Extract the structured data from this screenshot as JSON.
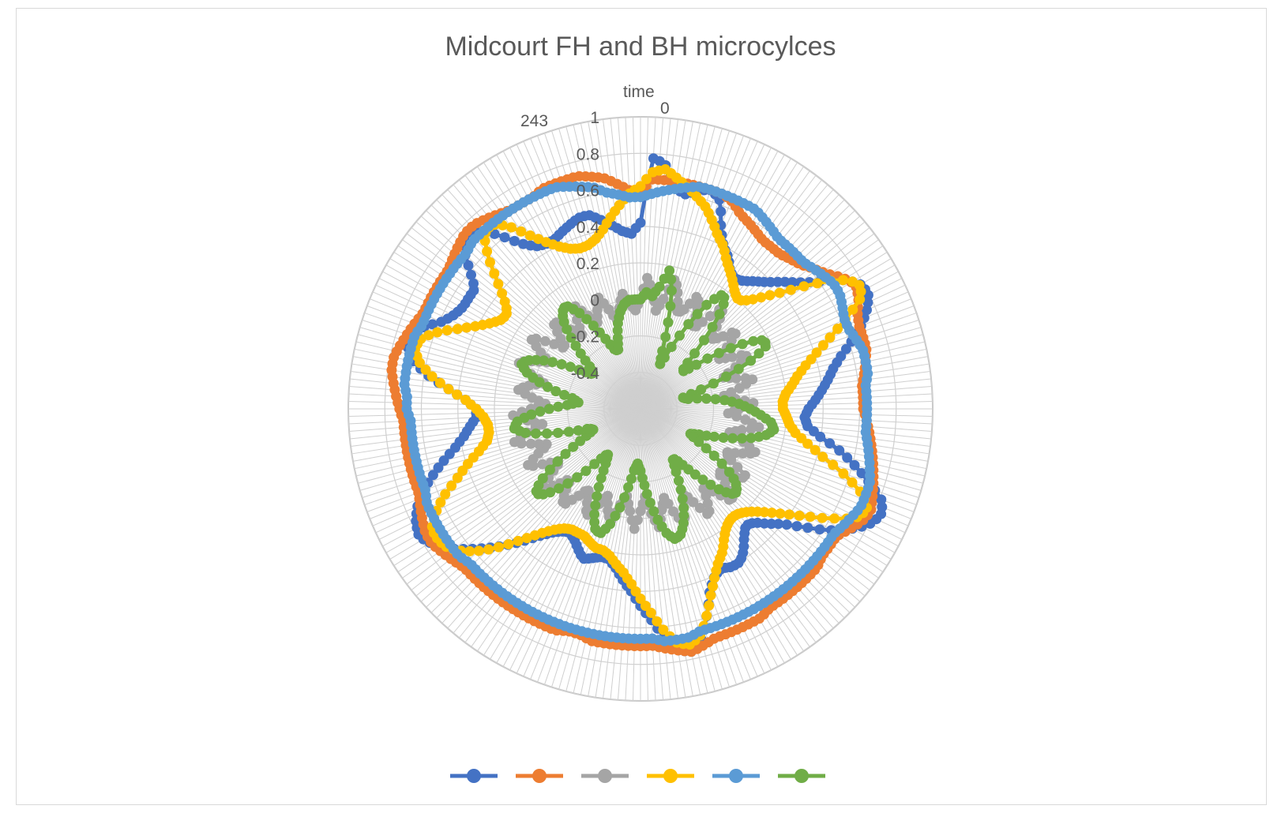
{
  "chart_data": {
    "type": "radar",
    "title": "Midcourt FH and BH microcylces",
    "category_axis_label": "time",
    "category_labels": [
      {
        "value": "0"
      },
      {
        "value": "243"
      }
    ],
    "n_categories": 244,
    "radial_range": [
      -0.6,
      1
    ],
    "radial_ticks": [
      "1",
      "0.8",
      "0.6",
      "0.4",
      "0.2",
      "0",
      "-0.2",
      "-0.4"
    ],
    "legend_position": "bottom",
    "series": [
      {
        "color": "#4472C4",
        "profile": [
          0.42,
          0.78,
          0.74,
          0.62,
          0.6,
          0.64,
          0.66,
          0.62,
          0.48,
          0.4,
          0.36,
          0.3,
          0.28,
          0.3,
          0.34,
          0.38,
          0.44,
          0.5,
          0.58,
          0.7,
          0.78,
          0.8,
          0.76,
          0.7,
          0.62,
          0.54,
          0.48,
          0.44,
          0.4,
          0.36,
          0.32,
          0.3,
          0.32,
          0.4,
          0.52,
          0.62,
          0.72,
          0.82,
          0.84,
          0.8,
          0.72,
          0.62,
          0.5,
          0.4,
          0.34,
          0.28,
          0.26,
          0.3,
          0.36,
          0.4,
          0.4,
          0.38,
          0.4,
          0.46,
          0.58,
          0.7,
          0.76,
          0.74,
          0.66,
          0.56,
          0.48,
          0.4,
          0.34,
          0.28,
          0.24,
          0.24,
          0.26,
          0.28,
          0.24,
          0.2,
          0.18,
          0.2,
          0.24,
          0.3,
          0.38,
          0.46,
          0.54,
          0.62,
          0.7,
          0.76,
          0.8,
          0.78,
          0.74,
          0.68,
          0.6,
          0.52,
          0.44,
          0.38,
          0.34,
          0.3,
          0.3,
          0.36,
          0.46,
          0.58,
          0.68,
          0.72,
          0.72,
          0.66,
          0.58,
          0.54,
          0.52,
          0.52,
          0.52,
          0.6,
          0.7,
          0.76,
          0.72,
          0.62,
          0.52,
          0.46,
          0.44,
          0.44,
          0.46,
          0.48,
          0.5,
          0.5,
          0.46,
          0.42,
          0.38,
          0.36
        ]
      },
      {
        "color": "#ED7D31",
        "profile": [
          0.58,
          0.66,
          0.66,
          0.66,
          0.66,
          0.66,
          0.66,
          0.66,
          0.64,
          0.6,
          0.58,
          0.56,
          0.54,
          0.54,
          0.54,
          0.56,
          0.58,
          0.62,
          0.66,
          0.72,
          0.76,
          0.74,
          0.7,
          0.68,
          0.68,
          0.68,
          0.66,
          0.64,
          0.62,
          0.62,
          0.62,
          0.64,
          0.66,
          0.68,
          0.7,
          0.72,
          0.74,
          0.76,
          0.78,
          0.76,
          0.72,
          0.68,
          0.68,
          0.68,
          0.7,
          0.7,
          0.7,
          0.7,
          0.7,
          0.7,
          0.72,
          0.72,
          0.72,
          0.72,
          0.72,
          0.74,
          0.76,
          0.74,
          0.72,
          0.7,
          0.7,
          0.7,
          0.7,
          0.7,
          0.7,
          0.68,
          0.68,
          0.7,
          0.7,
          0.7,
          0.7,
          0.7,
          0.7,
          0.7,
          0.7,
          0.7,
          0.7,
          0.72,
          0.74,
          0.76,
          0.76,
          0.74,
          0.72,
          0.7,
          0.7,
          0.7,
          0.7,
          0.7,
          0.7,
          0.7,
          0.72,
          0.74,
          0.76,
          0.78,
          0.78,
          0.76,
          0.74,
          0.72,
          0.7,
          0.7,
          0.7,
          0.7,
          0.7,
          0.72,
          0.74,
          0.76,
          0.76,
          0.74,
          0.72,
          0.7,
          0.7,
          0.7,
          0.72,
          0.72,
          0.72,
          0.72,
          0.7,
          0.68,
          0.64,
          0.6
        ]
      },
      {
        "color": "#A5A5A5",
        "profile": [
          0.0,
          0.12,
          0.04,
          -0.06,
          0.02,
          0.14,
          0.06,
          -0.04,
          0.0,
          0.1,
          0.02,
          -0.08,
          0.0,
          0.12,
          0.04,
          -0.06,
          -0.02,
          0.08,
          0.0,
          -0.1,
          -0.04,
          0.06,
          -0.02,
          -0.12,
          -0.06,
          0.04,
          -0.04,
          -0.14,
          -0.08,
          0.02,
          -0.06,
          -0.12,
          -0.02,
          0.06,
          -0.04,
          -0.1,
          0.0,
          0.08,
          0.0,
          -0.08,
          -0.02,
          0.1,
          0.02,
          -0.06,
          0.04,
          0.12,
          0.02,
          -0.06,
          0.02,
          0.1,
          0.0,
          -0.08,
          -0.02,
          0.08,
          0.0,
          -0.1,
          -0.04,
          0.06,
          -0.02,
          -0.12,
          -0.04,
          0.06,
          -0.04,
          -0.12,
          -0.06,
          0.04,
          -0.02,
          -0.1,
          -0.02,
          0.06,
          -0.02,
          -0.08,
          0.0,
          0.08,
          0.02,
          -0.06,
          0.02,
          0.1,
          0.0,
          -0.08,
          0.0,
          0.1,
          0.02,
          -0.06,
          0.02,
          0.12,
          0.04,
          -0.06,
          0.02,
          0.1,
          0.0,
          -0.08,
          0.0,
          0.08,
          0.02,
          -0.06,
          0.04,
          0.12,
          0.04,
          -0.04,
          0.04,
          0.12,
          0.02,
          -0.08,
          0.0,
          0.08,
          0.0,
          -0.1,
          -0.02,
          0.08,
          0.0,
          -0.08,
          -0.02,
          0.06,
          -0.02,
          -0.1,
          -0.04,
          0.04,
          -0.02,
          -0.06
        ]
      },
      {
        "color": "#FFC000",
        "profile": [
          0.62,
          0.7,
          0.72,
          0.68,
          0.64,
          0.6,
          0.56,
          0.5,
          0.44,
          0.4,
          0.34,
          0.3,
          0.26,
          0.22,
          0.2,
          0.24,
          0.32,
          0.42,
          0.56,
          0.7,
          0.78,
          0.76,
          0.64,
          0.52,
          0.42,
          0.34,
          0.28,
          0.24,
          0.2,
          0.18,
          0.18,
          0.2,
          0.22,
          0.26,
          0.34,
          0.44,
          0.58,
          0.7,
          0.76,
          0.72,
          0.6,
          0.48,
          0.38,
          0.3,
          0.24,
          0.2,
          0.18,
          0.18,
          0.2,
          0.24,
          0.3,
          0.34,
          0.4,
          0.48,
          0.58,
          0.68,
          0.72,
          0.7,
          0.62,
          0.52,
          0.44,
          0.36,
          0.3,
          0.26,
          0.22,
          0.2,
          0.2,
          0.18,
          0.16,
          0.16,
          0.16,
          0.18,
          0.22,
          0.28,
          0.36,
          0.46,
          0.56,
          0.64,
          0.7,
          0.72,
          0.72,
          0.66,
          0.58,
          0.48,
          0.4,
          0.32,
          0.26,
          0.24,
          0.24,
          0.26,
          0.3,
          0.36,
          0.46,
          0.56,
          0.64,
          0.68,
          0.66,
          0.58,
          0.48,
          0.4,
          0.34,
          0.3,
          0.3,
          0.36,
          0.46,
          0.58,
          0.68,
          0.7,
          0.64,
          0.54,
          0.46,
          0.4,
          0.36,
          0.34,
          0.34,
          0.36,
          0.4,
          0.46,
          0.52,
          0.58
        ]
      },
      {
        "color": "#5B9BD5",
        "profile": [
          0.56,
          0.58,
          0.6,
          0.62,
          0.64,
          0.66,
          0.66,
          0.66,
          0.66,
          0.66,
          0.66,
          0.64,
          0.62,
          0.6,
          0.6,
          0.6,
          0.6,
          0.62,
          0.64,
          0.66,
          0.66,
          0.64,
          0.62,
          0.62,
          0.64,
          0.66,
          0.66,
          0.66,
          0.64,
          0.64,
          0.64,
          0.64,
          0.64,
          0.66,
          0.68,
          0.7,
          0.72,
          0.72,
          0.72,
          0.7,
          0.68,
          0.66,
          0.66,
          0.66,
          0.66,
          0.66,
          0.66,
          0.66,
          0.66,
          0.66,
          0.66,
          0.66,
          0.66,
          0.66,
          0.66,
          0.66,
          0.68,
          0.68,
          0.68,
          0.66,
          0.66,
          0.66,
          0.66,
          0.66,
          0.66,
          0.66,
          0.66,
          0.66,
          0.66,
          0.66,
          0.66,
          0.66,
          0.66,
          0.66,
          0.66,
          0.66,
          0.66,
          0.68,
          0.68,
          0.68,
          0.68,
          0.68,
          0.68,
          0.66,
          0.66,
          0.66,
          0.66,
          0.66,
          0.66,
          0.66,
          0.68,
          0.68,
          0.7,
          0.7,
          0.7,
          0.7,
          0.7,
          0.68,
          0.68,
          0.68,
          0.68,
          0.68,
          0.68,
          0.68,
          0.68,
          0.7,
          0.7,
          0.7,
          0.7,
          0.7,
          0.7,
          0.7,
          0.7,
          0.7,
          0.68,
          0.66,
          0.64,
          0.6,
          0.58,
          0.56
        ]
      },
      {
        "color": "#70AD47",
        "profile": [
          0.0,
          0.04,
          0.02,
          0.08,
          0.18,
          0.06,
          -0.12,
          -0.28,
          -0.34,
          -0.2,
          -0.04,
          0.1,
          0.18,
          0.12,
          -0.04,
          -0.22,
          -0.3,
          -0.24,
          -0.1,
          0.04,
          0.16,
          0.18,
          0.08,
          -0.08,
          -0.24,
          -0.36,
          -0.34,
          -0.24,
          -0.14,
          -0.06,
          0.0,
          0.06,
          0.12,
          0.14,
          0.1,
          0.02,
          -0.08,
          -0.18,
          -0.26,
          -0.3,
          -0.22,
          -0.1,
          0.02,
          0.08,
          0.1,
          0.04,
          -0.06,
          -0.16,
          -0.24,
          -0.28,
          -0.22,
          -0.12,
          -0.02,
          0.06,
          0.12,
          0.14,
          0.1,
          0.02,
          -0.08,
          -0.18,
          -0.26,
          -0.3,
          -0.26,
          -0.16,
          -0.04,
          0.06,
          0.12,
          0.1,
          0.02,
          -0.08,
          -0.18,
          -0.26,
          -0.3,
          -0.24,
          -0.12,
          0.0,
          0.1,
          0.14,
          0.08,
          -0.04,
          -0.16,
          -0.26,
          -0.32,
          -0.3,
          -0.2,
          -0.08,
          0.04,
          0.1,
          0.08,
          0.0,
          -0.1,
          -0.2,
          -0.26,
          -0.22,
          -0.12,
          -0.02,
          0.06,
          0.1,
          0.06,
          -0.02,
          -0.12,
          -0.22,
          -0.28,
          -0.26,
          -0.18,
          -0.08,
          0.02,
          0.08,
          0.1,
          0.04,
          -0.06,
          -0.16,
          -0.24,
          -0.26,
          -0.2,
          -0.12,
          -0.06,
          -0.02,
          0.0,
          0.0
        ]
      }
    ]
  }
}
